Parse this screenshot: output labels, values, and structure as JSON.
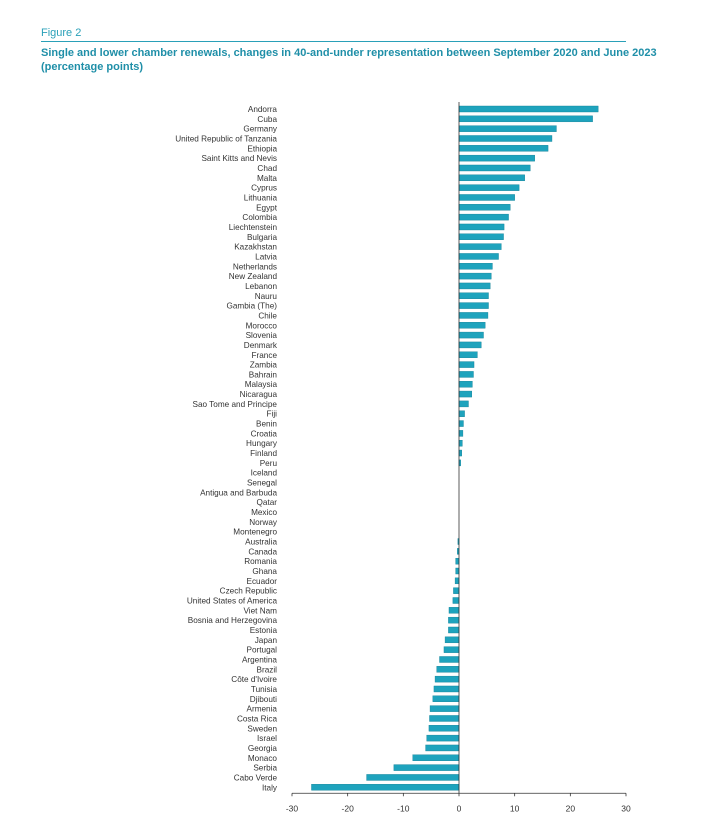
{
  "figure_label": "Figure 2",
  "title": "Single and lower chamber renewals, changes in 40-and-under representation between September 2020 and June 2023 (percentage points)",
  "colors": {
    "bar": "#1ea3bd",
    "bar_edge": "#0f7f95",
    "axis": "#333333",
    "text": "#333333",
    "accent": "#2aa0b8"
  },
  "chart_data": {
    "type": "bar",
    "orientation": "horizontal",
    "title": "Single and lower chamber renewals, changes in 40-and-under representation between September 2020 and June 2023 (percentage points)",
    "xlim": [
      -30,
      30
    ],
    "xticks": [
      -30,
      -20,
      -10,
      0,
      10,
      20,
      30
    ],
    "grid": false,
    "categories": [
      "Andorra",
      "Cuba",
      "Germany",
      "United Republic of Tanzania",
      "Ethiopia",
      "Saint Kitts and Nevis",
      "Chad",
      "Malta",
      "Cyprus",
      "Lithuania",
      "Egypt",
      "Colombia",
      "Liechtenstein",
      "Bulgaria",
      "Kazakhstan",
      "Latvia",
      "Netherlands",
      "New Zealand",
      "Lebanon",
      "Nauru",
      "Gambia (The)",
      "Chile",
      "Morocco",
      "Slovenia",
      "Denmark",
      "France",
      "Zambia",
      "Bahrain",
      "Malaysia",
      "Nicaragua",
      "Sao Tome and Principe",
      "Fiji",
      "Benin",
      "Croatia",
      "Hungary",
      "Finland",
      "Peru",
      "Iceland",
      "Senegal",
      "Antigua and Barbuda",
      "Qatar",
      "Mexico",
      "Norway",
      "Montenegro",
      "Australia",
      "Canada",
      "Romania",
      "Ghana",
      "Ecuador",
      "Czech Republic",
      "United States of America",
      "Viet Nam",
      "Bosnia and Herzegovina",
      "Estonia",
      "Japan",
      "Portugal",
      "Argentina",
      "Brazil",
      "Côte d'Ivoire",
      "Tunisia",
      "Djibouti",
      "Armenia",
      "Costa Rica",
      "Sweden",
      "Israel",
      "Georgia",
      "Monaco",
      "Serbia",
      "Cabo Verde",
      "Italy"
    ],
    "values": [
      25.0,
      24.0,
      17.5,
      16.7,
      16.0,
      13.6,
      12.8,
      11.8,
      10.8,
      10.0,
      9.2,
      8.9,
      8.1,
      8.0,
      7.6,
      7.1,
      6.0,
      5.8,
      5.6,
      5.3,
      5.3,
      5.2,
      4.7,
      4.4,
      4.0,
      3.3,
      2.7,
      2.6,
      2.4,
      2.3,
      1.7,
      1.0,
      0.8,
      0.7,
      0.6,
      0.5,
      0.3,
      0.0,
      0.0,
      0.0,
      0.0,
      0.0,
      0.0,
      0.0,
      -0.2,
      -0.3,
      -0.6,
      -0.6,
      -0.7,
      -1.0,
      -1.1,
      -1.8,
      -1.9,
      -1.9,
      -2.5,
      -2.7,
      -3.5,
      -4.0,
      -4.3,
      -4.5,
      -4.7,
      -5.2,
      -5.3,
      -5.4,
      -5.8,
      -6.0,
      -8.3,
      -11.7,
      -16.6,
      -26.5
    ]
  }
}
